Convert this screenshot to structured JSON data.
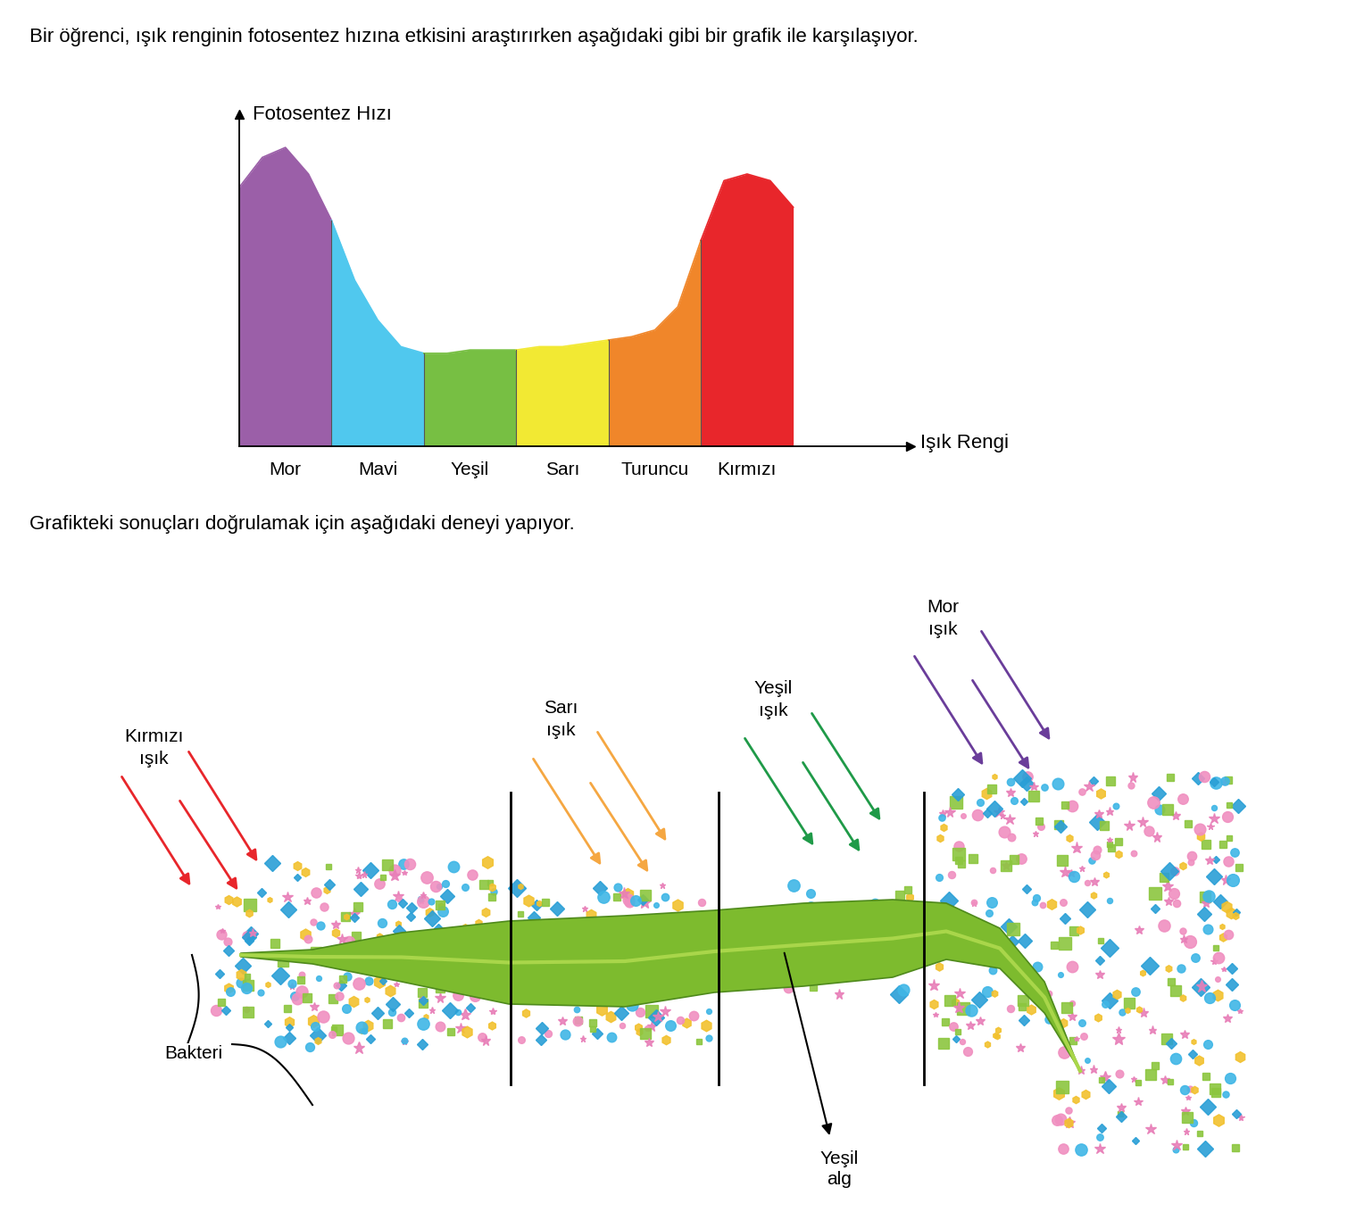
{
  "question": "Bir öğrenci, ışık renginin fotosentez hızına etkisini araştırırken aşağıdaki gibi bir grafik ile karşılaşıyor.",
  "chart_data": {
    "type": "area",
    "y_label": "Fotosentez Hızı",
    "x_label": "Işık Rengi",
    "categories": [
      "Mor",
      "Mavi",
      "Yeşil",
      "Sarı",
      "Turuncu",
      "Kırmızı"
    ],
    "values": [
      [
        78,
        87,
        90,
        82,
        68
      ],
      [
        68,
        50,
        38,
        30,
        28
      ],
      [
        28,
        28,
        29,
        29,
        29
      ],
      [
        29,
        30,
        30,
        31,
        32
      ],
      [
        32,
        33,
        35,
        42,
        62
      ],
      [
        62,
        80,
        82,
        80,
        72
      ]
    ],
    "colors": [
      "#9b5fa8",
      "#50c8ee",
      "#77bf43",
      "#f2e933",
      "#f0862a",
      "#e8262b"
    ],
    "ylim": [
      0,
      100
    ],
    "tick_labels": "x"
  },
  "experiment_intro": "Grafikteki sonuçları doğrulamak için aşağıdaki deneyi yapıyor.",
  "experiment": {
    "lights": [
      {
        "label": "Kırmızı ışık",
        "color": "#e8262b"
      },
      {
        "label": "Sarı ışık",
        "color": "#f5a742"
      },
      {
        "label": "Yeşil ışık",
        "color": "#1f9a48"
      },
      {
        "label": "Mor ışık",
        "color": "#6a3d9a"
      }
    ],
    "bacteria_label": "Bakteri",
    "alga_label": "Yeşil alg"
  }
}
